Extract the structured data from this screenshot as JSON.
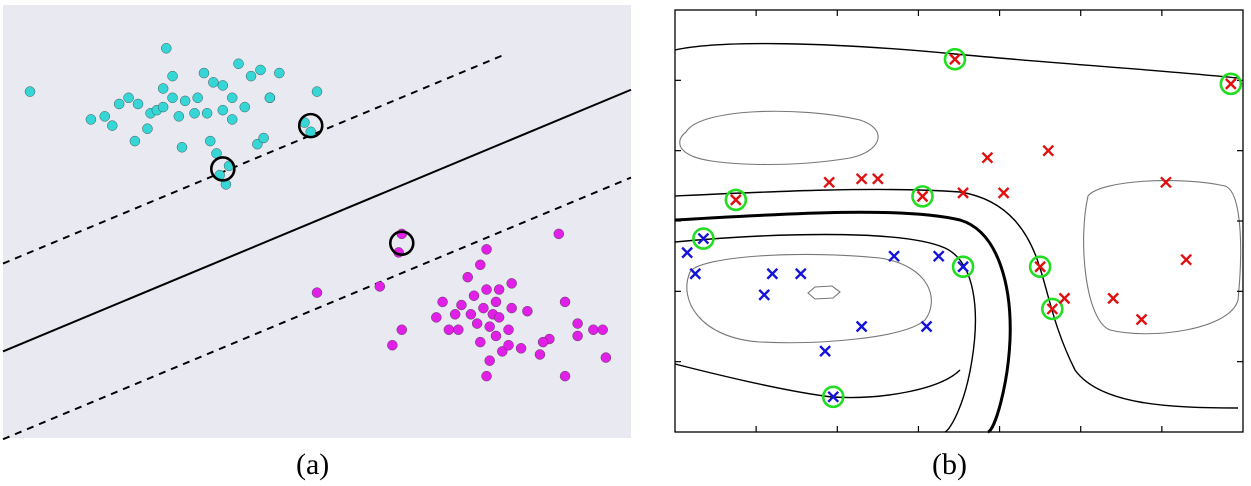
{
  "panels": {
    "a_label": "(a)",
    "b_label": "(b)"
  },
  "colors": {
    "panel_a_bg": "#e9e9f1",
    "class_cyan": "#36d6d6",
    "class_magenta": "#e020e6",
    "cross_red": "#e01010",
    "cross_blue": "#1414d8",
    "sv_green": "#22dd22",
    "line": "#000000"
  },
  "chart_data": [
    {
      "type": "scatter",
      "description_panel": "a",
      "title": "",
      "xlabel": "",
      "ylabel": "",
      "xlim": [
        0,
        10
      ],
      "ylim": [
        0,
        7
      ],
      "grid": false,
      "legend": "none",
      "decision_boundary": {
        "slope": 0.423,
        "intercept": 1.4
      },
      "margin_offset": 1.42,
      "series": [
        {
          "color": "cyan",
          "points": [
            [
              0.43,
              5.6
            ],
            [
              1.4,
              5.15
            ],
            [
              1.62,
              5.2
            ],
            [
              1.74,
              5.05
            ],
            [
              1.85,
              5.4
            ],
            [
              2.0,
              5.5
            ],
            [
              2.1,
              4.8
            ],
            [
              2.15,
              5.4
            ],
            [
              2.3,
              5.0
            ],
            [
              2.35,
              5.25
            ],
            [
              2.45,
              5.3
            ],
            [
              2.55,
              5.35
            ],
            [
              2.6,
              6.3
            ],
            [
              2.7,
              5.5
            ],
            [
              2.8,
              5.2
            ],
            [
              2.55,
              5.65
            ],
            [
              2.7,
              5.85
            ],
            [
              2.9,
              5.45
            ],
            [
              3.05,
              5.25
            ],
            [
              3.2,
              5.9
            ],
            [
              3.1,
              5.5
            ],
            [
              3.25,
              5.25
            ],
            [
              3.35,
              5.75
            ],
            [
              3.5,
              5.7
            ],
            [
              3.5,
              5.3
            ],
            [
              3.65,
              5.5
            ],
            [
              3.75,
              6.05
            ],
            [
              3.65,
              5.15
            ],
            [
              3.85,
              5.35
            ],
            [
              3.95,
              5.85
            ],
            [
              4.1,
              5.95
            ],
            [
              4.25,
              5.5
            ],
            [
              4.4,
              5.9
            ],
            [
              4.05,
              4.75
            ],
            [
              2.85,
              4.7
            ],
            [
              3.3,
              4.8
            ],
            [
              3.4,
              4.6
            ],
            [
              3.6,
              4.4
            ],
            [
              3.45,
              4.25
            ],
            [
              4.15,
              4.85
            ],
            [
              4.25,
              5.5
            ],
            [
              4.8,
              5.1
            ],
            [
              5.0,
              5.6
            ],
            [
              4.9,
              4.95
            ],
            [
              3.55,
              4.1
            ]
          ]
        },
        {
          "color": "magenta",
          "points": [
            [
              6.35,
              3.3
            ],
            [
              8.85,
              3.3
            ],
            [
              7.7,
              3.05
            ],
            [
              7.6,
              2.8
            ],
            [
              6.0,
              2.45
            ],
            [
              7.9,
              2.4
            ],
            [
              8.1,
              2.5
            ],
            [
              5.0,
              2.35
            ],
            [
              7.4,
              2.6
            ],
            [
              7.5,
              2.3
            ],
            [
              7.7,
              2.4
            ],
            [
              7.85,
              2.2
            ],
            [
              7.0,
              2.2
            ],
            [
              7.3,
              2.15
            ],
            [
              7.2,
              2.0
            ],
            [
              7.45,
              2.0
            ],
            [
              7.65,
              2.1
            ],
            [
              7.8,
              2.0
            ],
            [
              7.9,
              1.95
            ],
            [
              8.1,
              2.1
            ],
            [
              8.35,
              2.05
            ],
            [
              8.95,
              2.2
            ],
            [
              9.15,
              1.85
            ],
            [
              9.4,
              1.75
            ],
            [
              9.55,
              1.75
            ],
            [
              6.9,
              1.95
            ],
            [
              7.1,
              1.75
            ],
            [
              7.25,
              1.75
            ],
            [
              7.55,
              1.85
            ],
            [
              7.75,
              1.8
            ],
            [
              8.05,
              1.75
            ],
            [
              8.7,
              1.6
            ],
            [
              9.15,
              1.65
            ],
            [
              6.2,
              1.5
            ],
            [
              6.35,
              1.75
            ],
            [
              7.6,
              1.55
            ],
            [
              7.85,
              1.65
            ],
            [
              7.95,
              1.4
            ],
            [
              8.05,
              1.5
            ],
            [
              8.25,
              1.45
            ],
            [
              8.55,
              1.35
            ],
            [
              8.6,
              1.55
            ],
            [
              7.75,
              1.25
            ],
            [
              9.6,
              1.3
            ],
            [
              8.95,
              1.0
            ],
            [
              7.7,
              1.0
            ],
            [
              6.3,
              3.0
            ]
          ]
        }
      ],
      "support_vectors": [
        [
          4.9,
          5.05
        ],
        [
          3.5,
          4.35
        ],
        [
          6.35,
          3.15
        ]
      ]
    },
    {
      "type": "scatter",
      "description_panel": "b",
      "title": "",
      "xlabel": "",
      "ylabel": "",
      "xlim": [
        0,
        7
      ],
      "ylim": [
        0,
        6
      ],
      "grid": false,
      "legend": "none",
      "series": [
        {
          "color": "red",
          "marker": "x",
          "points": [
            [
              3.45,
              5.3
            ],
            [
              6.85,
              4.95
            ],
            [
              3.85,
              3.9
            ],
            [
              4.6,
              4.0
            ],
            [
              1.9,
              3.55
            ],
            [
              2.3,
              3.6
            ],
            [
              2.5,
              3.6
            ],
            [
              6.05,
              3.55
            ],
            [
              3.55,
              3.4
            ],
            [
              4.05,
              3.4
            ],
            [
              0.75,
              3.3
            ],
            [
              3.05,
              3.35
            ],
            [
              6.3,
              2.45
            ],
            [
              4.5,
              2.35
            ],
            [
              4.8,
              1.9
            ],
            [
              5.4,
              1.9
            ],
            [
              4.65,
              1.75
            ],
            [
              5.75,
              1.6
            ]
          ]
        },
        {
          "color": "blue",
          "marker": "x",
          "points": [
            [
              0.35,
              2.75
            ],
            [
              0.15,
              2.55
            ],
            [
              2.7,
              2.5
            ],
            [
              3.25,
              2.5
            ],
            [
              3.55,
              2.35
            ],
            [
              0.25,
              2.25
            ],
            [
              1.2,
              2.25
            ],
            [
              1.55,
              2.25
            ],
            [
              1.1,
              1.95
            ],
            [
              2.3,
              1.5
            ],
            [
              3.1,
              1.5
            ],
            [
              1.85,
              1.15
            ],
            [
              1.95,
              0.5
            ]
          ]
        }
      ],
      "support_vectors": [
        [
          3.45,
          5.3
        ],
        [
          6.85,
          4.95
        ],
        [
          0.75,
          3.3
        ],
        [
          3.05,
          3.35
        ],
        [
          0.35,
          2.75
        ],
        [
          3.55,
          2.35
        ],
        [
          4.5,
          2.35
        ],
        [
          4.65,
          1.75
        ],
        [
          1.95,
          0.5
        ]
      ],
      "x_ticks": [
        1,
        2,
        3,
        4,
        5,
        6
      ],
      "y_ticks": [
        1,
        2,
        3,
        4,
        5
      ]
    }
  ]
}
